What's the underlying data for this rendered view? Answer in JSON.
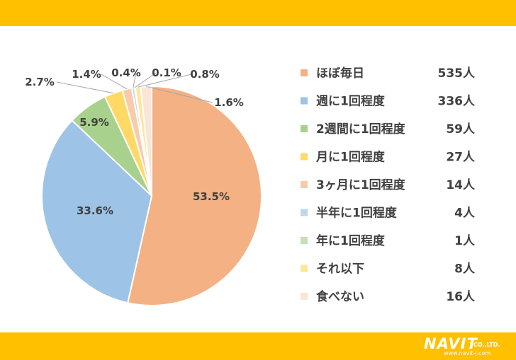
{
  "chart_data": {
    "type": "pie",
    "title": "",
    "start_angle_deg": 0,
    "direction": "clockwise",
    "legend_position": "right",
    "slices": [
      {
        "label": "ほぼ毎日",
        "count": "535人",
        "value": 53.5,
        "label_text": "53.5%",
        "color": "#f4b183"
      },
      {
        "label": "週に1回程度",
        "count": "336人",
        "value": 33.6,
        "label_text": "33.6%",
        "color": "#9dc3e6"
      },
      {
        "label": "2週間に1回程度",
        "count": "59人",
        "value": 5.9,
        "label_text": "5.9%",
        "color": "#a9d18e"
      },
      {
        "label": "月に1回程度",
        "count": "27人",
        "value": 2.7,
        "label_text": "2.7%",
        "color": "#ffd966"
      },
      {
        "label": "3ヶ月に1回程度",
        "count": "14人",
        "value": 1.4,
        "label_text": "1.4%",
        "color": "#f8cbad"
      },
      {
        "label": "半年に1回程度",
        "count": "4人",
        "value": 0.4,
        "label_text": "0.4%",
        "color": "#bdd7ee"
      },
      {
        "label": "年に1回程度",
        "count": "1人",
        "value": 0.1,
        "label_text": "0.1%",
        "color": "#c5e0b4"
      },
      {
        "label": "それ以下",
        "count": "8人",
        "value": 0.8,
        "label_text": "0.8%",
        "color": "#ffe699"
      },
      {
        "label": "食べない",
        "count": "16人",
        "value": 1.6,
        "label_text": "1.6%",
        "color": "#fbe5d6"
      }
    ]
  },
  "logo": {
    "word": "NAVIT",
    "suffix": "CO.,LTD.",
    "url": "www.navit-j.com"
  }
}
